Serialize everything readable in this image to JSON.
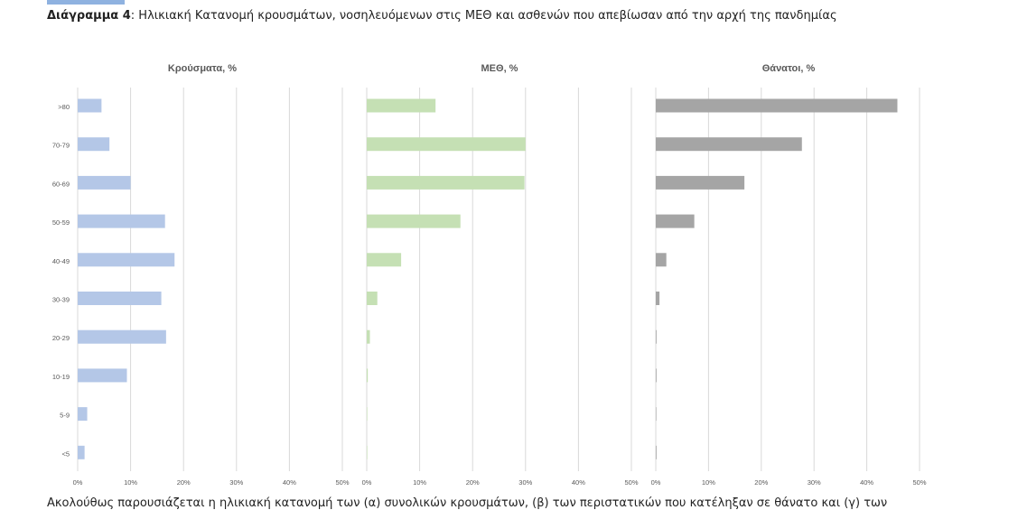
{
  "caption": {
    "label": "Διάγραμμα 4",
    "text": ": Ηλικιακή Κατανομή κρουσμάτων, νοσηλευόμενων στις ΜΕΘ και ασθενών που απεβίωσαν από την αρχή της πανδημίας"
  },
  "footer_text": "Ακολούθως παρουσιάζεται η ηλικιακή κατανομή των (α) συνολικών κρουσμάτων, (β) των περιστατικών που κατέληξαν σε θάνατο και (γ) των",
  "chart_data": [
    {
      "type": "bar",
      "orientation": "horizontal",
      "title": "Κρούσματα, %",
      "categories": [
        ">80",
        "70-79",
        "60-69",
        "50-59",
        "40-49",
        "30-39",
        "20-29",
        "10-19",
        "5-9",
        "<5"
      ],
      "values": [
        4.5,
        6,
        10,
        16.5,
        18.3,
        15.8,
        16.7,
        9.3,
        1.8,
        1.3
      ],
      "xlim": [
        0,
        50
      ],
      "xticks": [
        "0%",
        "10%",
        "20%",
        "30%",
        "40%",
        "50%"
      ],
      "grid": true,
      "color": "#b4c7e7"
    },
    {
      "type": "bar",
      "orientation": "horizontal",
      "title": "ΜΕΘ, %",
      "categories": [
        ">80",
        "70-79",
        "60-69",
        "50-59",
        "40-49",
        "30-39",
        "20-29",
        "10-19",
        "5-9",
        "<5"
      ],
      "values": [
        13,
        30,
        29.8,
        17.7,
        6.5,
        2,
        0.6,
        0.2,
        0,
        0
      ],
      "xlim": [
        0,
        50
      ],
      "xticks": [
        "0%",
        "10%",
        "20%",
        "30%",
        "40%",
        "50%"
      ],
      "grid": true,
      "color": "#c5e0b4"
    },
    {
      "type": "bar",
      "orientation": "horizontal",
      "title": "Θάνατοι, %",
      "categories": [
        ">80",
        "70-79",
        "60-69",
        "50-59",
        "40-49",
        "30-39",
        "20-29",
        "10-19",
        "5-9",
        "<5"
      ],
      "values": [
        45.8,
        27.7,
        16.8,
        7.3,
        2,
        0.7,
        0.1,
        0.05,
        0,
        0.02
      ],
      "xlim": [
        0,
        50
      ],
      "xticks": [
        "0%",
        "10%",
        "20%",
        "30%",
        "40%",
        "50%"
      ],
      "grid": true,
      "color": "#a5a5a5"
    }
  ]
}
